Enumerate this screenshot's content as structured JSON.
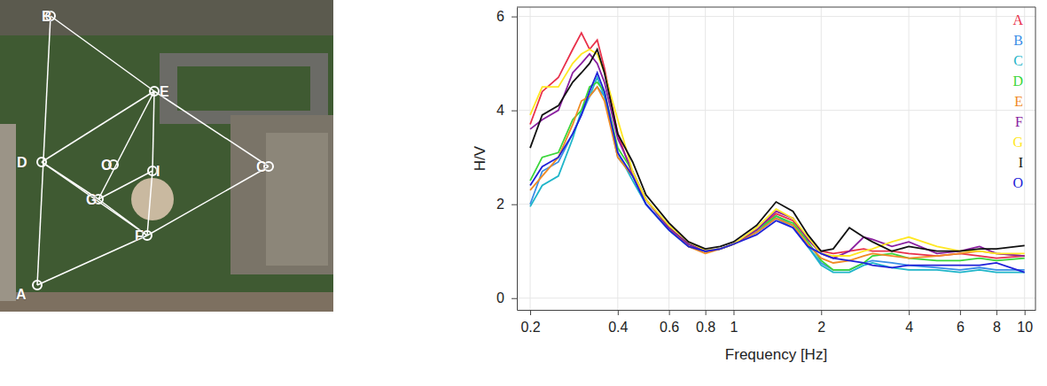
{
  "map": {
    "points": [
      "A",
      "B",
      "C",
      "D",
      "E",
      "F",
      "G",
      "I",
      "O"
    ]
  },
  "chart_data": {
    "type": "line",
    "x_label": "Frequency [Hz]",
    "y_label": "H/V",
    "log": "x",
    "grid": true,
    "legend": "upper right",
    "xlim": [
      0.18,
      10.9
    ],
    "ylim": [
      -0.25,
      6.2
    ],
    "xticks": [
      0.2,
      0.4,
      0.6,
      0.8,
      1,
      2,
      4,
      6,
      8,
      10
    ],
    "yticks": [
      0,
      2,
      4,
      6
    ],
    "x": [
      0.2,
      0.22,
      0.25,
      0.28,
      0.3,
      0.32,
      0.34,
      0.36,
      0.4,
      0.45,
      0.5,
      0.6,
      0.7,
      0.8,
      0.9,
      1,
      1.2,
      1.4,
      1.6,
      1.8,
      2,
      2.2,
      2.5,
      2.8,
      3,
      3.5,
      4,
      5,
      6,
      7,
      8,
      10
    ],
    "series": [
      {
        "name": "A",
        "color": "#e8304a",
        "values": [
          3.7,
          4.4,
          4.7,
          5.3,
          5.65,
          5.3,
          5.5,
          4.9,
          3.5,
          2.6,
          2.1,
          1.5,
          1.15,
          1.0,
          1.05,
          1.15,
          1.45,
          1.8,
          1.65,
          1.25,
          1.0,
          0.95,
          1.0,
          1.05,
          1.0,
          1.0,
          0.95,
          0.9,
          0.95,
          0.9,
          0.85,
          0.9
        ]
      },
      {
        "name": "B",
        "color": "#3a8ee6",
        "values": [
          2.0,
          2.7,
          2.9,
          3.5,
          3.9,
          4.3,
          4.5,
          4.3,
          3.0,
          2.6,
          2.0,
          1.45,
          1.1,
          1.0,
          1.05,
          1.15,
          1.4,
          1.7,
          1.5,
          1.1,
          0.75,
          0.6,
          0.6,
          0.75,
          0.8,
          0.75,
          0.7,
          0.65,
          0.6,
          0.65,
          0.6,
          0.6
        ]
      },
      {
        "name": "C",
        "color": "#1fb5c9",
        "values": [
          1.95,
          2.4,
          2.6,
          3.4,
          4.0,
          4.3,
          4.7,
          4.3,
          3.1,
          2.5,
          2.0,
          1.45,
          1.1,
          1.0,
          1.05,
          1.15,
          1.4,
          1.75,
          1.55,
          1.1,
          0.7,
          0.55,
          0.55,
          0.7,
          0.75,
          0.65,
          0.6,
          0.6,
          0.55,
          0.6,
          0.55,
          0.55
        ]
      },
      {
        "name": "D",
        "color": "#3ad63a",
        "values": [
          2.5,
          3.0,
          3.1,
          3.8,
          4.0,
          4.5,
          4.6,
          4.4,
          3.2,
          2.7,
          2.1,
          1.5,
          1.15,
          1.0,
          1.05,
          1.15,
          1.45,
          1.75,
          1.6,
          1.2,
          0.8,
          0.6,
          0.6,
          0.75,
          0.9,
          0.95,
          0.85,
          0.8,
          0.8,
          0.85,
          0.8,
          0.85
        ]
      },
      {
        "name": "E",
        "color": "#f08a24",
        "values": [
          2.3,
          2.6,
          3.0,
          3.7,
          4.2,
          4.3,
          4.5,
          4.2,
          3.0,
          2.6,
          2.1,
          1.5,
          1.1,
          0.95,
          1.05,
          1.15,
          1.4,
          1.7,
          1.55,
          1.15,
          0.85,
          0.75,
          0.8,
          0.9,
          0.95,
          0.9,
          0.85,
          0.9,
          0.95,
          1.0,
          0.95,
          0.9
        ]
      },
      {
        "name": "F",
        "color": "#8a1fa0",
        "values": [
          3.6,
          3.8,
          4.0,
          4.8,
          5.0,
          5.2,
          5.0,
          4.6,
          3.4,
          2.7,
          2.1,
          1.5,
          1.15,
          1.0,
          1.05,
          1.15,
          1.45,
          1.85,
          1.7,
          1.25,
          0.95,
          0.85,
          1.0,
          1.3,
          1.25,
          1.1,
          1.2,
          0.95,
          1.0,
          1.1,
          0.95,
          0.9
        ]
      },
      {
        "name": "G",
        "color": "#ffe824",
        "values": [
          3.9,
          4.5,
          4.5,
          5.0,
          5.2,
          5.3,
          5.2,
          4.8,
          3.8,
          2.7,
          2.1,
          1.55,
          1.2,
          1.02,
          1.05,
          1.15,
          1.5,
          1.9,
          1.7,
          1.3,
          0.95,
          0.9,
          0.9,
          1.0,
          1.05,
          1.2,
          1.3,
          1.1,
          1.0,
          1.0,
          0.95,
          0.95
        ]
      },
      {
        "name": "I",
        "color": "#111111",
        "values": [
          3.2,
          3.9,
          4.1,
          4.6,
          4.8,
          5.0,
          5.3,
          4.8,
          3.5,
          2.9,
          2.2,
          1.6,
          1.2,
          1.05,
          1.1,
          1.2,
          1.55,
          2.05,
          1.85,
          1.35,
          1.0,
          1.05,
          1.5,
          1.3,
          1.2,
          1.0,
          1.1,
          1.0,
          1.0,
          1.05,
          1.05,
          1.12
        ]
      },
      {
        "name": "O",
        "color": "#2020d8",
        "values": [
          2.4,
          2.8,
          3.0,
          3.5,
          3.9,
          4.4,
          4.8,
          4.4,
          3.1,
          2.6,
          2.0,
          1.45,
          1.1,
          1.0,
          1.05,
          1.15,
          1.35,
          1.65,
          1.5,
          1.1,
          0.95,
          0.85,
          0.8,
          0.75,
          0.7,
          0.65,
          0.7,
          0.7,
          0.7,
          0.7,
          0.75,
          0.55
        ]
      }
    ]
  }
}
